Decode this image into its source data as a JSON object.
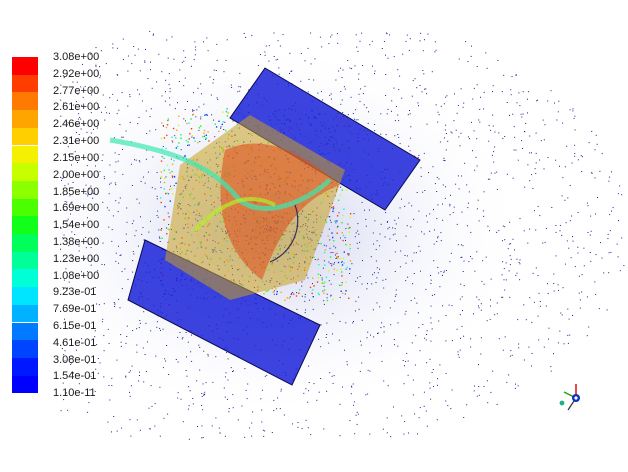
{
  "chart_data": {
    "type": "scatter",
    "colorbar": {
      "colors": [
        "#ff0000",
        "#ff3d00",
        "#ff7a00",
        "#ffa500",
        "#ffcf00",
        "#f5f000",
        "#c8ff00",
        "#8cff00",
        "#4cff00",
        "#12ff1a",
        "#00ff5a",
        "#00ff99",
        "#00ffd6",
        "#00e5ff",
        "#00b2ff",
        "#007bff",
        "#0044ff",
        "#0018ff",
        "#0000ff"
      ],
      "tick_labels": [
        "3.08e+00",
        "2.92e+00",
        "2.77e+00",
        "2.61e+00",
        "2.46e+00",
        "2.31e+00",
        "2.15e+00",
        "2.00e+00",
        "1.85e+00",
        "1.69e+00",
        "1.54e+00",
        "1.38e+00",
        "1.23e+00",
        "1.08e+00",
        "9.23e-01",
        "7.69e-01",
        "6.15e-01",
        "4.61e-01",
        "3.08e-01",
        "1.54e-01",
        "1.10e-11"
      ],
      "range": [
        1.1e-11,
        3.08
      ]
    }
  }
}
